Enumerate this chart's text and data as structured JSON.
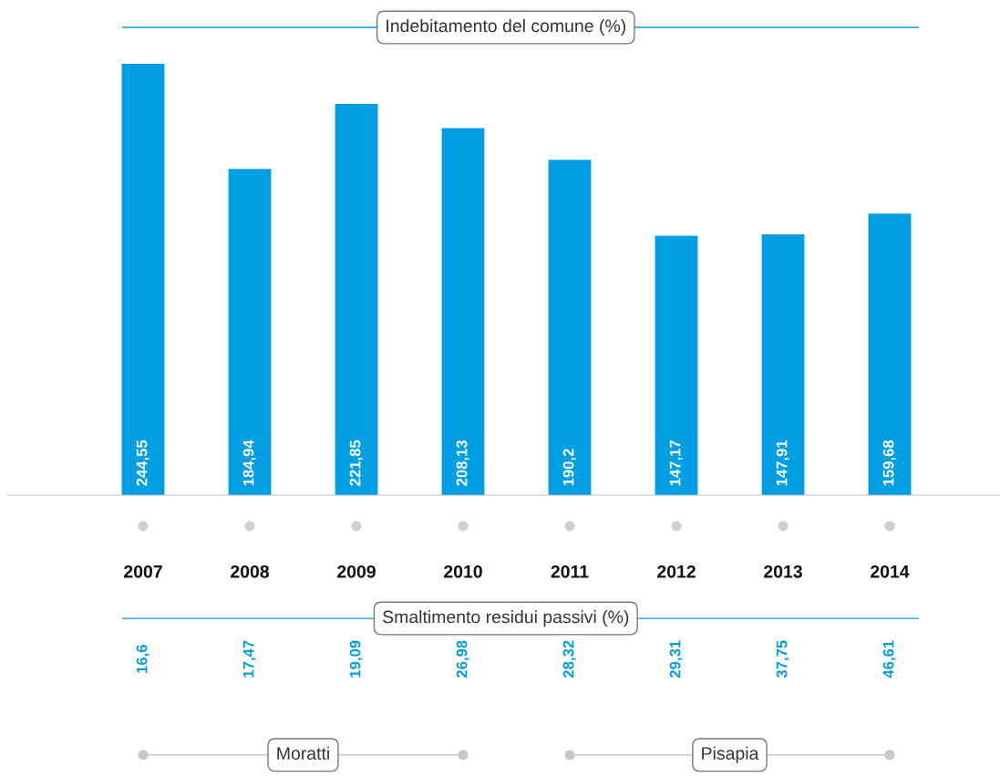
{
  "chart_data": [
    {
      "type": "bar",
      "title": "Indebitamento del comune (%)",
      "categories": [
        "2007",
        "2008",
        "2009",
        "2010",
        "2011",
        "2012",
        "2013",
        "2014"
      ],
      "values": [
        244.55,
        184.94,
        221.85,
        208.13,
        190.2,
        147.17,
        147.91,
        159.68
      ],
      "value_labels": [
        "244,55",
        "184,94",
        "221,85",
        "208,13",
        "190,2",
        "147,17",
        "147,91",
        "159,68"
      ],
      "color": "#009fe3"
    },
    {
      "type": "other",
      "title": "Smaltimento residui passivi (%)",
      "value_labels": [
        "16,6",
        "17,47",
        "19,09",
        "26,98",
        "28,32",
        "29,31",
        "37,75",
        "46,61"
      ],
      "color": "#009fe3",
      "annotations": [
        "Moratti",
        "Pisapia"
      ]
    }
  ]
}
